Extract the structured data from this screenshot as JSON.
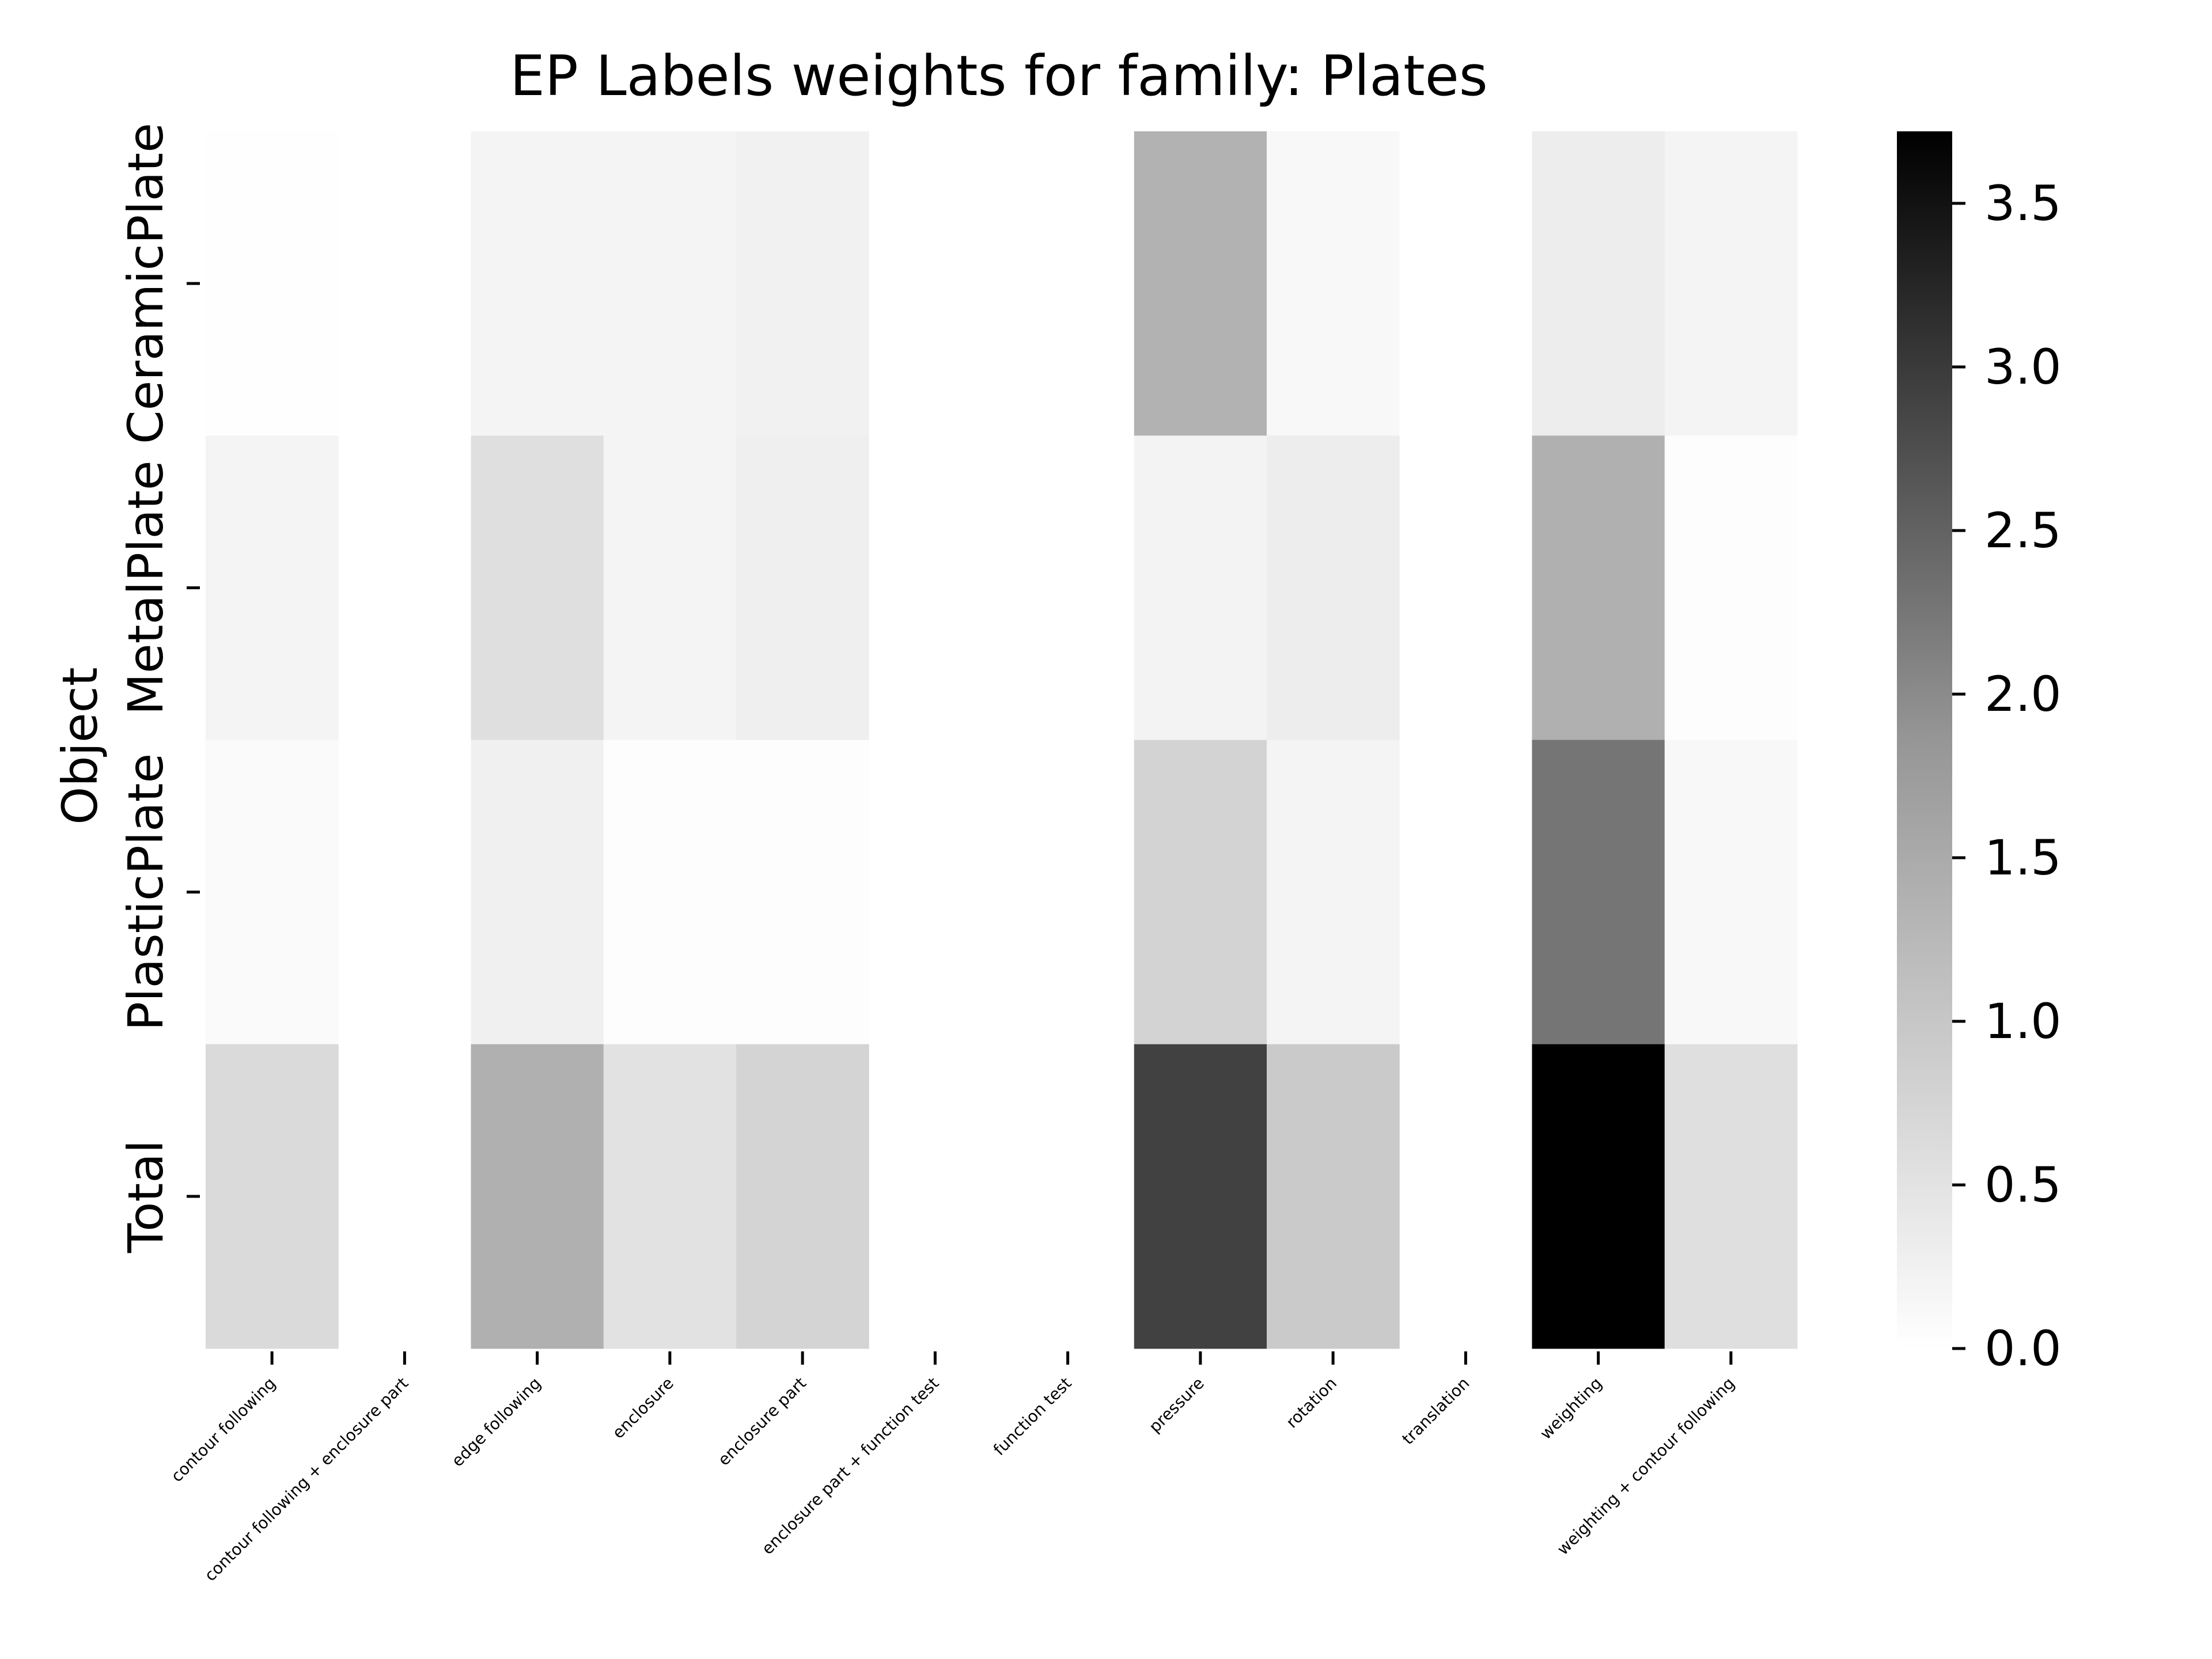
{
  "chart_data": {
    "type": "heatmap",
    "title": "EP Labels weights for family: Plates",
    "ylabel": "Object",
    "xlabel": "",
    "rows": [
      "CeramicPlate",
      "MetalPlate",
      "PlasticPlate",
      "Total"
    ],
    "columns": [
      "contour following",
      "contour following + enclosure part",
      "edge following",
      "enclosure",
      "enclosure part",
      "enclosure part + function test",
      "function test",
      "pressure",
      "rotation",
      "translation",
      "weighting",
      "weighting + contour following"
    ],
    "values": [
      [
        0.02,
        0.0,
        0.17,
        0.17,
        0.22,
        0.0,
        0.0,
        1.23,
        0.12,
        0.0,
        0.29,
        0.17
      ],
      [
        0.17,
        0.0,
        0.52,
        0.18,
        0.26,
        0.0,
        0.0,
        0.2,
        0.29,
        0.0,
        1.26,
        0.03
      ],
      [
        0.08,
        0.0,
        0.24,
        0.03,
        0.03,
        0.0,
        0.0,
        0.71,
        0.17,
        0.0,
        2.16,
        0.12
      ],
      [
        0.6,
        0.0,
        1.26,
        0.46,
        0.69,
        0.0,
        0.0,
        2.9,
        0.85,
        0.0,
        3.72,
        0.52
      ]
    ],
    "blank_columns": [
      "contour following + enclosure part",
      "enclosure part + function test",
      "function test",
      "translation"
    ],
    "colorbar": {
      "min": 0.0,
      "max": 3.72,
      "ticks": [
        0.0,
        0.5,
        1.0,
        1.5,
        2.0,
        2.5,
        3.0,
        3.5
      ],
      "tick_labels": [
        "0.0",
        "0.5",
        "1.0",
        "1.5",
        "2.0",
        "2.5",
        "3.0",
        "3.5"
      ],
      "colormap": "Greys",
      "color_low": "#ffffff",
      "color_high": "#000000"
    }
  }
}
